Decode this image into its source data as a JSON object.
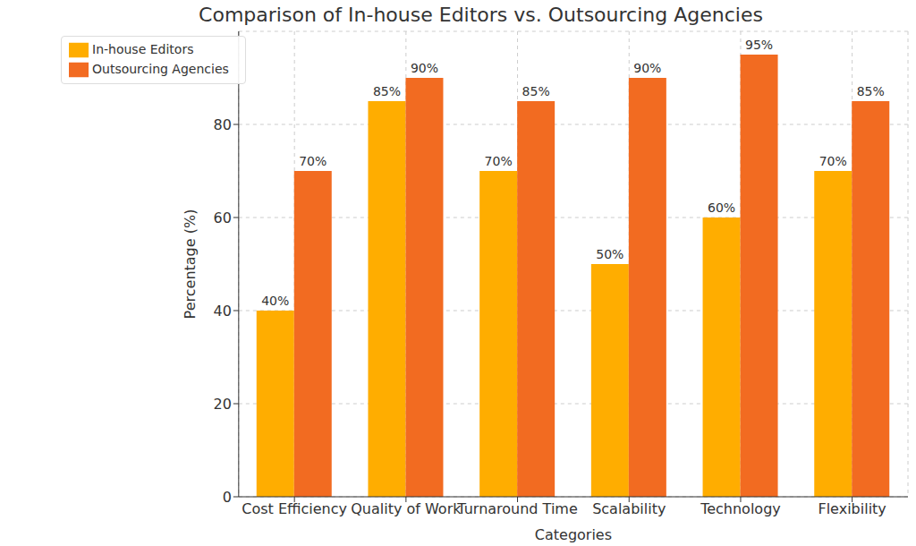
{
  "chart_data": {
    "type": "bar",
    "title": "Comparison of In-house Editors vs. Outsourcing Agencies",
    "x_label": "Categories",
    "y_label": "Percentage (%)",
    "categories": [
      "Cost Efficiency",
      "Quality of Work",
      "Turnaround Time",
      "Scalability",
      "Technology",
      "Flexibility"
    ],
    "series": [
      {
        "name": "In-house Editors",
        "color": "#ffad00",
        "values": [
          40,
          85,
          70,
          50,
          60,
          70
        ],
        "value_labels": [
          "40%",
          "85%",
          "70%",
          "50%",
          "60%",
          "70%"
        ]
      },
      {
        "name": "Outsourcing Agencies",
        "color": "#f26b21",
        "values": [
          70,
          90,
          85,
          90,
          95,
          85
        ],
        "value_labels": [
          "70%",
          "90%",
          "85%",
          "90%",
          "95%",
          "85%"
        ]
      }
    ],
    "ylim": [
      0,
      100
    ],
    "yticks": [
      0,
      20,
      40,
      60,
      80
    ],
    "grid": true,
    "legend": "upper left",
    "data_labels": true
  }
}
